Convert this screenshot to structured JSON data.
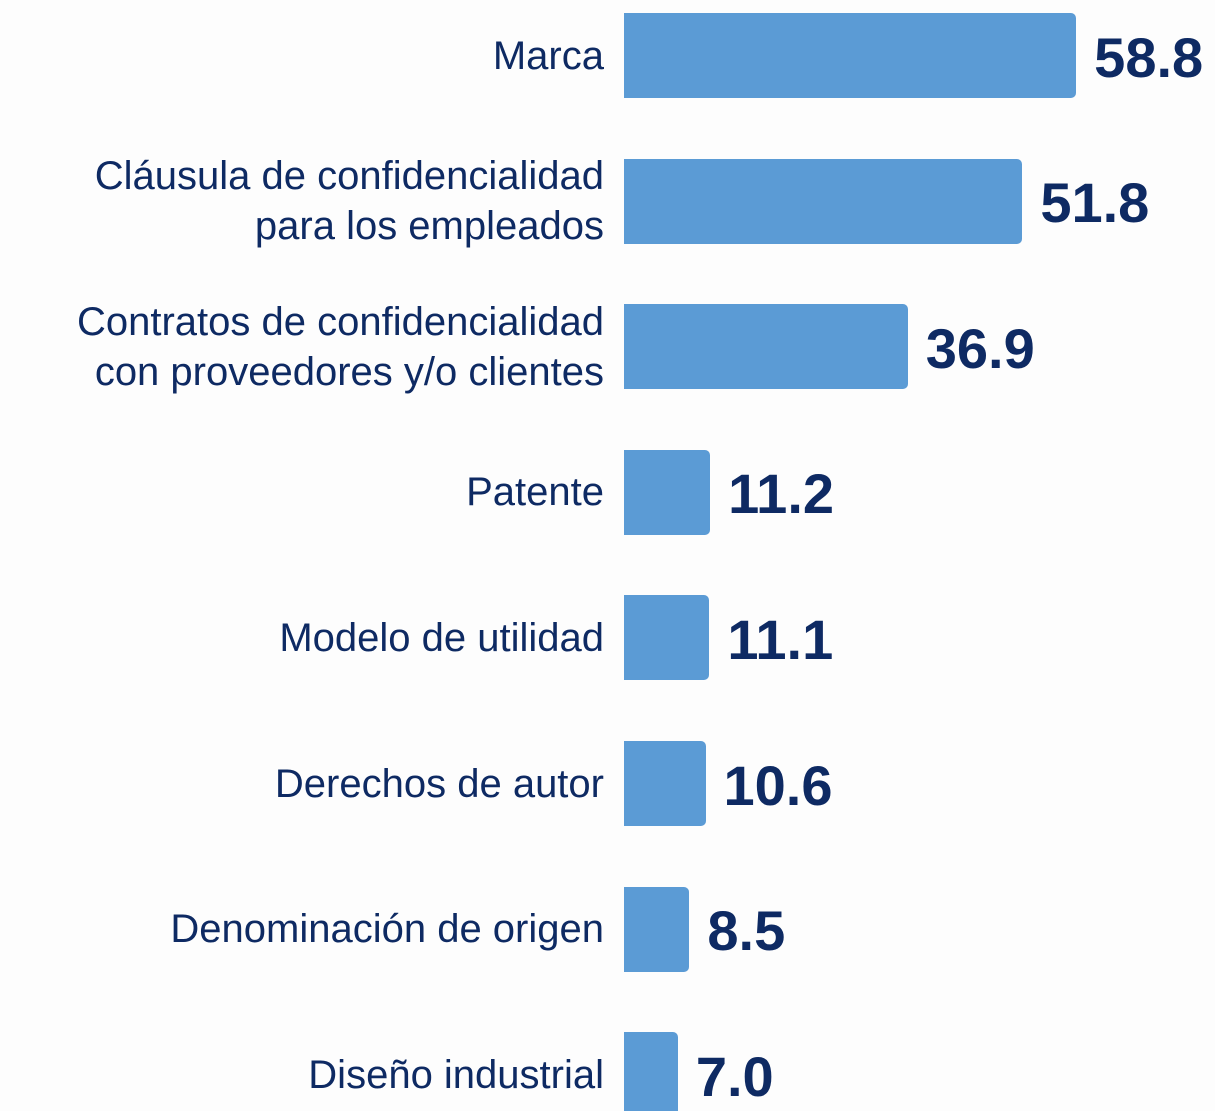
{
  "chart_data": {
    "type": "bar",
    "orientation": "horizontal",
    "categories": [
      "Marca",
      "Cláusula de confidencialidad para los empleados",
      "Contratos de confidencialidad con proveedores y/o clientes",
      "Patente",
      "Modelo de utilidad",
      "Derechos de autor",
      "Denominación de origen",
      "Diseño industrial"
    ],
    "values": [
      58.8,
      51.8,
      36.9,
      11.2,
      11.1,
      10.6,
      8.5,
      7.0
    ],
    "value_labels": [
      "58.8",
      "51.8",
      "36.9",
      "11.2",
      "11.1",
      "10.6",
      "8.5",
      "7.0"
    ],
    "color": "#5b9bd5"
  }
}
